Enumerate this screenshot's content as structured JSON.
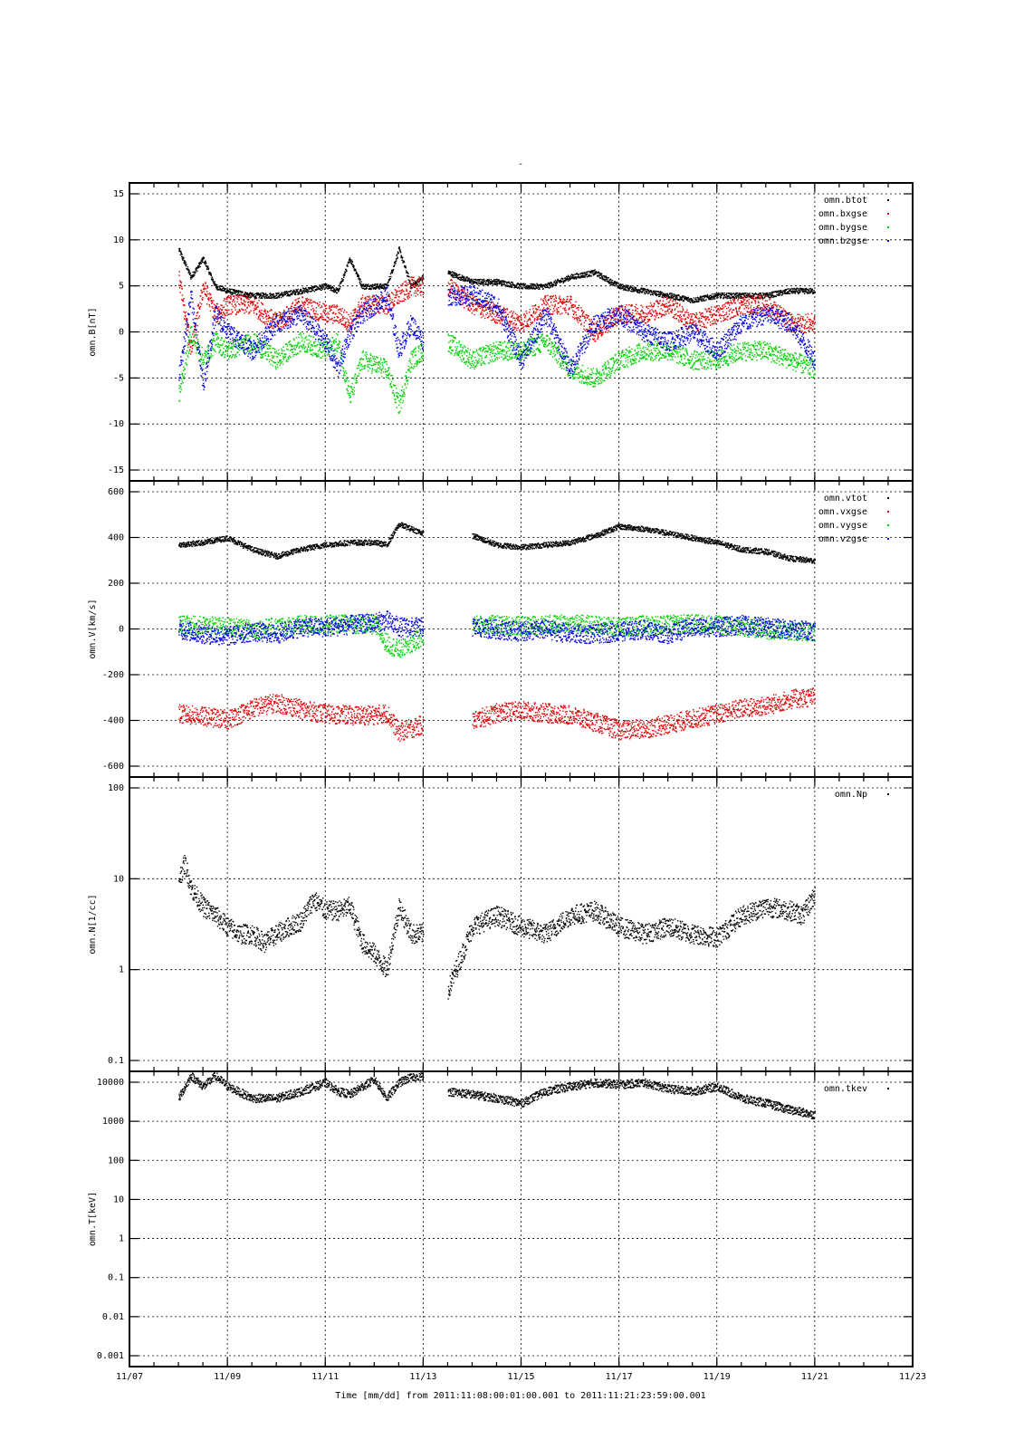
{
  "figure": {
    "title": "-",
    "xlabel": "Time [mm/dd]   from 2011:11:08:00:01:00.001  to  2011:11:21:23:59:00.001"
  },
  "colors": {
    "black": "#000000",
    "red": "#e00000",
    "green": "#00d000",
    "blue": "#0000e0"
  },
  "chart_data": [
    {
      "type": "scatter",
      "ylabel": "omn.B[nT]",
      "yscale": "linear",
      "ylim": [
        -15,
        16
      ],
      "yticks": [
        15,
        10,
        5,
        0,
        -5,
        -10,
        -15
      ],
      "ytick_labels": [
        "15",
        "10",
        "5",
        "0",
        "-5",
        "-10",
        "-15"
      ],
      "xlim_days": [
        0,
        16
      ],
      "xticks_days": [
        0,
        2,
        4,
        6,
        8,
        10,
        12,
        14,
        16
      ],
      "xtick_labels": [
        "11/07",
        "11/09",
        "11/11",
        "11/13",
        "11/15",
        "11/17",
        "11/19",
        "11/21",
        "11/23"
      ],
      "show_xtick_labels": false,
      "grid": true,
      "legend_position": "top-right",
      "series": [
        {
          "name": "omn.btot",
          "color": "#000000",
          "x": [
            "11/08 00:00",
            "11/08 06:00",
            "11/08 12:00",
            "11/08 18:00",
            "11/09 00:00",
            "11/09 12:00",
            "11/10 00:00",
            "11/10 12:00",
            "11/11 00:00",
            "11/11 06:00",
            "11/11 12:00",
            "11/11 18:00",
            "11/12 06:00",
            "11/12 12:00",
            "11/12 18:00",
            "11/13 00:00",
            "11/13 06:00",
            "11/13 12:00",
            "11/14 00:00",
            "11/14 12:00",
            "11/15 00:00",
            "11/15 12:00",
            "11/16 00:00",
            "11/16 12:00",
            "11/17 00:00",
            "11/17 12:00",
            "11/18 00:00",
            "11/18 12:00",
            "11/19 00:00",
            "11/19 12:00",
            "11/20 00:00",
            "11/20 12:00",
            "11/21 00:00"
          ],
          "y": [
            9,
            6,
            8,
            5,
            4.5,
            4,
            4,
            4.5,
            5,
            4.5,
            8,
            5,
            5,
            9,
            5,
            6,
            "gap",
            6.5,
            5.5,
            5.5,
            5,
            5,
            6,
            6.5,
            5,
            4.5,
            4,
            3.5,
            4,
            4,
            4,
            4.5,
            4.5
          ]
        },
        {
          "name": "omn.bxgse",
          "color": "#e00000",
          "x": [
            "11/08 00:00",
            "11/08 06:00",
            "11/08 12:00",
            "11/08 18:00",
            "11/09 00:00",
            "11/09 12:00",
            "11/10 00:00",
            "11/10 12:00",
            "11/11 00:00",
            "11/11 06:00",
            "11/11 12:00",
            "11/11 18:00",
            "11/12 06:00",
            "11/12 12:00",
            "11/12 18:00",
            "11/13 00:00",
            "11/13 06:00",
            "11/13 12:00",
            "11/14 00:00",
            "11/14 12:00",
            "11/15 00:00",
            "11/15 12:00",
            "11/16 00:00",
            "11/16 12:00",
            "11/17 00:00",
            "11/17 12:00",
            "11/18 00:00",
            "11/18 12:00",
            "11/19 00:00",
            "11/19 12:00",
            "11/20 00:00",
            "11/20 12:00",
            "11/21 00:00"
          ],
          "y": [
            6,
            -2,
            5,
            2,
            3,
            3,
            1,
            3,
            2,
            2,
            1,
            3,
            3,
            4,
            5,
            5,
            "gap",
            5,
            3,
            2,
            1,
            3,
            3,
            0,
            2,
            2,
            3,
            1,
            2,
            3,
            3,
            1,
            1
          ]
        },
        {
          "name": "omn.bygse",
          "color": "#00d000",
          "x": [
            "11/08 00:00",
            "11/08 06:00",
            "11/08 12:00",
            "11/08 18:00",
            "11/09 00:00",
            "11/09 12:00",
            "11/10 00:00",
            "11/10 12:00",
            "11/11 00:00",
            "11/11 06:00",
            "11/11 12:00",
            "11/11 18:00",
            "11/12 06:00",
            "11/12 12:00",
            "11/12 18:00",
            "11/13 00:00",
            "11/13 06:00",
            "11/13 12:00",
            "11/14 00:00",
            "11/14 12:00",
            "11/15 00:00",
            "11/15 12:00",
            "11/16 00:00",
            "11/16 12:00",
            "11/17 00:00",
            "11/17 12:00",
            "11/18 00:00",
            "11/18 12:00",
            "11/19 00:00",
            "11/19 12:00",
            "11/20 00:00",
            "11/20 12:00",
            "11/21 00:00"
          ],
          "y": [
            -7,
            0,
            -3,
            -1,
            -2,
            -1,
            -3,
            -1,
            -2,
            -1,
            -7,
            -3,
            -4,
            -8,
            -3,
            -2,
            "gap",
            -1,
            -3,
            -2,
            -2,
            -1,
            -4,
            -5,
            -3,
            -2,
            -2,
            -3,
            -3,
            -2,
            -2,
            -3,
            -4
          ]
        },
        {
          "name": "omn.bzgse",
          "color": "#0000e0",
          "x": [
            "11/08 00:00",
            "11/08 06:00",
            "11/08 12:00",
            "11/08 18:00",
            "11/09 00:00",
            "11/09 12:00",
            "11/10 00:00",
            "11/10 12:00",
            "11/11 00:00",
            "11/11 06:00",
            "11/11 12:00",
            "11/11 18:00",
            "11/12 06:00",
            "11/12 12:00",
            "11/12 18:00",
            "11/13 00:00",
            "11/13 06:00",
            "11/13 12:00",
            "11/14 00:00",
            "11/14 12:00",
            "11/15 00:00",
            "11/15 12:00",
            "11/16 00:00",
            "11/16 12:00",
            "11/17 00:00",
            "11/17 12:00",
            "11/18 00:00",
            "11/18 12:00",
            "11/19 00:00",
            "11/19 12:00",
            "11/20 00:00",
            "11/20 12:00",
            "11/21 00:00"
          ],
          "y": [
            -5,
            4,
            -6,
            2,
            0,
            -2,
            1,
            2,
            -1,
            -4,
            0,
            2,
            4,
            -2,
            1,
            -1,
            "gap",
            4,
            4,
            3,
            -3,
            2,
            -4,
            1,
            2,
            0,
            -1,
            0,
            -2,
            1,
            2,
            1,
            -3
          ]
        }
      ]
    },
    {
      "type": "scatter",
      "ylabel": "omn.V[km/s]",
      "yscale": "linear",
      "ylim": [
        -620,
        620
      ],
      "yticks": [
        600,
        400,
        200,
        0,
        -200,
        -400,
        -600
      ],
      "ytick_labels": [
        "600",
        "400",
        "200",
        "0",
        "-200",
        "-400",
        "-600"
      ],
      "xlim_days": [
        0,
        16
      ],
      "xticks_days": [
        0,
        2,
        4,
        6,
        8,
        10,
        12,
        14,
        16
      ],
      "xtick_labels": [
        "11/07",
        "11/09",
        "11/11",
        "11/13",
        "11/15",
        "11/17",
        "11/19",
        "11/21",
        "11/23"
      ],
      "show_xtick_labels": false,
      "grid": true,
      "legend_position": "top-right",
      "series": [
        {
          "name": "omn.vtot",
          "color": "#000000",
          "x": [
            "11/08 00:00",
            "11/08 12:00",
            "11/09 00:00",
            "11/09 12:00",
            "11/10 00:00",
            "11/10 12:00",
            "11/11 00:00",
            "11/11 12:00",
            "11/12 00:00",
            "11/12 06:00",
            "11/12 12:00",
            "11/13 00:00",
            "11/13 06:00",
            "11/14 00:00",
            "11/14 12:00",
            "11/15 00:00",
            "11/15 12:00",
            "11/16 00:00",
            "11/16 12:00",
            "11/17 00:00",
            "11/17 12:00",
            "11/18 00:00",
            "11/18 12:00",
            "11/19 00:00",
            "11/19 12:00",
            "11/20 00:00",
            "11/20 12:00",
            "11/21 00:00"
          ],
          "y": [
            370,
            380,
            400,
            350,
            320,
            350,
            370,
            380,
            380,
            370,
            460,
            420,
            "gap",
            410,
            370,
            360,
            370,
            380,
            410,
            450,
            440,
            420,
            400,
            380,
            350,
            340,
            310,
            300
          ]
        },
        {
          "name": "omn.vxgse",
          "color": "#e00000",
          "x": [
            "11/08 00:00",
            "11/08 12:00",
            "11/09 00:00",
            "11/09 12:00",
            "11/10 00:00",
            "11/10 12:00",
            "11/11 00:00",
            "11/11 12:00",
            "11/12 00:00",
            "11/12 06:00",
            "11/12 12:00",
            "11/13 00:00",
            "11/13 06:00",
            "11/14 00:00",
            "11/14 12:00",
            "11/15 00:00",
            "11/15 12:00",
            "11/16 00:00",
            "11/16 12:00",
            "11/17 00:00",
            "11/17 12:00",
            "11/18 00:00",
            "11/18 12:00",
            "11/19 00:00",
            "11/19 12:00",
            "11/20 00:00",
            "11/20 12:00",
            "11/21 00:00"
          ],
          "y": [
            -370,
            -380,
            -395,
            -345,
            -320,
            -350,
            -370,
            -375,
            -375,
            -365,
            -450,
            -415,
            "gap",
            -400,
            -365,
            -355,
            -365,
            -375,
            -405,
            -440,
            -435,
            -415,
            -390,
            -370,
            -345,
            -335,
            -305,
            -295
          ]
        },
        {
          "name": "omn.vygse",
          "color": "#00d000",
          "x": [
            "11/08 00:00",
            "11/08 12:00",
            "11/09 00:00",
            "11/09 12:00",
            "11/10 00:00",
            "11/10 12:00",
            "11/11 00:00",
            "11/11 12:00",
            "11/12 00:00",
            "11/12 06:00",
            "11/12 12:00",
            "11/13 00:00",
            "11/13 06:00",
            "11/14 00:00",
            "11/14 12:00",
            "11/15 00:00",
            "11/15 12:00",
            "11/16 00:00",
            "11/16 12:00",
            "11/17 00:00",
            "11/17 12:00",
            "11/18 00:00",
            "11/18 12:00",
            "11/19 00:00",
            "11/19 12:00",
            "11/20 00:00",
            "11/20 12:00",
            "11/21 00:00"
          ],
          "y": [
            20,
            15,
            10,
            0,
            10,
            20,
            20,
            25,
            20,
            -60,
            -90,
            -30,
            "gap",
            20,
            20,
            15,
            20,
            25,
            20,
            10,
            20,
            20,
            25,
            20,
            10,
            0,
            -5,
            -10
          ]
        },
        {
          "name": "omn.vzgse",
          "color": "#0000e0",
          "x": [
            "11/08 00:00",
            "11/08 12:00",
            "11/09 00:00",
            "11/09 12:00",
            "11/10 00:00",
            "11/10 12:00",
            "11/11 00:00",
            "11/11 12:00",
            "11/12 00:00",
            "11/12 06:00",
            "11/12 12:00",
            "11/13 00:00",
            "11/13 06:00",
            "11/14 00:00",
            "11/14 12:00",
            "11/15 00:00",
            "11/15 12:00",
            "11/16 00:00",
            "11/16 12:00",
            "11/17 00:00",
            "11/17 12:00",
            "11/18 00:00",
            "11/18 12:00",
            "11/19 00:00",
            "11/19 12:00",
            "11/20 00:00",
            "11/20 12:00",
            "11/21 00:00"
          ],
          "y": [
            0,
            -20,
            -30,
            -10,
            -20,
            10,
            10,
            20,
            30,
            40,
            10,
            10,
            "gap",
            10,
            0,
            -10,
            0,
            -20,
            -20,
            -10,
            0,
            -20,
            10,
            10,
            20,
            10,
            0,
            -5
          ]
        }
      ]
    },
    {
      "type": "scatter",
      "ylabel": "omn.N[1/cc]",
      "yscale": "log",
      "ylim": [
        0.1,
        100
      ],
      "yticks": [
        100,
        10,
        1,
        0.1
      ],
      "ytick_labels": [
        "100",
        "10",
        "1",
        "0.1"
      ],
      "xlim_days": [
        0,
        16
      ],
      "xticks_days": [
        0,
        2,
        4,
        6,
        8,
        10,
        12,
        14,
        16
      ],
      "xtick_labels": [
        "11/07",
        "11/09",
        "11/11",
        "11/13",
        "11/15",
        "11/17",
        "11/19",
        "11/21",
        "11/23"
      ],
      "show_xtick_labels": false,
      "grid": true,
      "legend_position": "top-right",
      "series": [
        {
          "name": "omn.Np",
          "color": "#000000",
          "x": [
            "11/08 00:00",
            "11/08 03:00",
            "11/08 06:00",
            "11/08 12:00",
            "11/08 18:00",
            "11/09 00:00",
            "11/09 06:00",
            "11/09 12:00",
            "11/09 18:00",
            "11/10 00:00",
            "11/10 06:00",
            "11/10 12:00",
            "11/10 18:00",
            "11/11 00:00",
            "11/11 06:00",
            "11/11 12:00",
            "11/11 18:00",
            "11/12 00:00",
            "11/12 06:00",
            "11/12 12:00",
            "11/12 18:00",
            "11/13 00:00",
            "11/13 06:00",
            "11/13 12:00",
            "11/14 00:00",
            "11/14 12:00",
            "11/15 00:00",
            "11/15 12:00",
            "11/16 00:00",
            "11/16 12:00",
            "11/17 00:00",
            "11/17 12:00",
            "11/18 00:00",
            "11/18 12:00",
            "11/19 00:00",
            "11/19 12:00",
            "11/20 00:00",
            "11/20 12:00",
            "11/20 18:00",
            "11/21 00:00"
          ],
          "y": [
            10,
            15,
            8,
            5,
            4,
            3,
            2.5,
            2.5,
            2,
            2.5,
            3,
            3.5,
            6,
            4.5,
            4.5,
            5,
            2,
            1.5,
            1,
            5,
            2.5,
            2.5,
            "gap",
            0.6,
            3,
            4,
            3,
            2.5,
            4,
            4.5,
            3,
            2.5,
            3,
            2.5,
            2.3,
            4,
            5,
            4.5,
            4,
            7
          ]
        }
      ]
    },
    {
      "type": "scatter",
      "ylabel": "omn.T[keV]",
      "yscale": "log",
      "ylim": [
        0.001,
        20000
      ],
      "yticks": [
        10000,
        1000,
        100,
        10,
        1,
        0.1,
        0.01,
        0.001
      ],
      "ytick_labels": [
        "10000",
        "1000",
        "100",
        "10",
        "1",
        "0.1",
        "0.01",
        "0.001"
      ],
      "xlim_days": [
        0,
        16
      ],
      "xticks_days": [
        0,
        2,
        4,
        6,
        8,
        10,
        12,
        14,
        16
      ],
      "xtick_labels": [
        "11/07",
        "11/09",
        "11/11",
        "11/13",
        "11/15",
        "11/17",
        "11/19",
        "11/21",
        "11/23"
      ],
      "show_xtick_labels": true,
      "grid": true,
      "legend_position": "top-right",
      "series": [
        {
          "name": "omn.tkev",
          "color": "#000000",
          "x": [
            "11/08 00:00",
            "11/08 06:00",
            "11/08 12:00",
            "11/08 18:00",
            "11/09 00:00",
            "11/09 12:00",
            "11/10 00:00",
            "11/10 12:00",
            "11/11 00:00",
            "11/11 06:00",
            "11/11 12:00",
            "11/11 18:00",
            "11/12 00:00",
            "11/12 06:00",
            "11/12 12:00",
            "11/12 18:00",
            "11/13 00:00",
            "11/13 06:00",
            "11/13 12:00",
            "11/14 00:00",
            "11/14 12:00",
            "11/15 00:00",
            "11/15 12:00",
            "11/16 00:00",
            "11/16 12:00",
            "11/17 00:00",
            "11/17 12:00",
            "11/18 00:00",
            "11/18 12:00",
            "11/19 00:00",
            "11/19 12:00",
            "11/20 00:00",
            "11/20 12:00",
            "11/21 00:00"
          ],
          "y": [
            4000,
            15000,
            8000,
            15000,
            8000,
            4000,
            4000,
            6000,
            10000,
            6000,
            5000,
            8000,
            12000,
            4000,
            10000,
            14000,
            15000,
            "gap",
            6000,
            5000,
            4000,
            3000,
            6000,
            8000,
            10000,
            9000,
            10000,
            7000,
            6000,
            8000,
            4000,
            3000,
            2000,
            1500
          ]
        }
      ]
    }
  ]
}
